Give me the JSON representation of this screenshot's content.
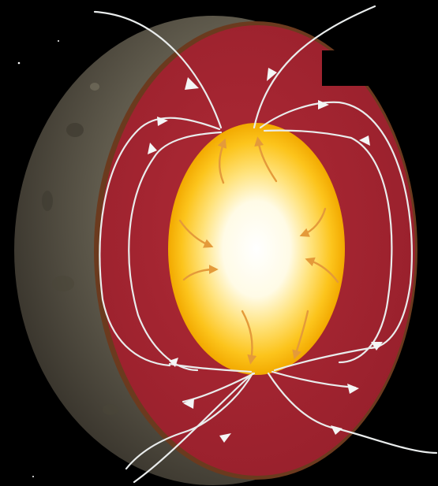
{
  "scene": {
    "subject": "planet-cutaway-magnetic-field",
    "colors": {
      "space": "#000000",
      "surface": "#5f5a4c",
      "surface_dark": "#2a2620",
      "mantle": "#a52330",
      "mantle_edge": "#6b3a1e",
      "core_outer": "#f6b800",
      "core_mid": "#ffd84a",
      "core_center": "#ffffff",
      "field_lines": "#e9ecec",
      "flow_arrows": "#e49a3a"
    },
    "icons": [
      "field-line-arrow-icon",
      "core-flow-arrow-icon",
      "star-icon"
    ]
  }
}
